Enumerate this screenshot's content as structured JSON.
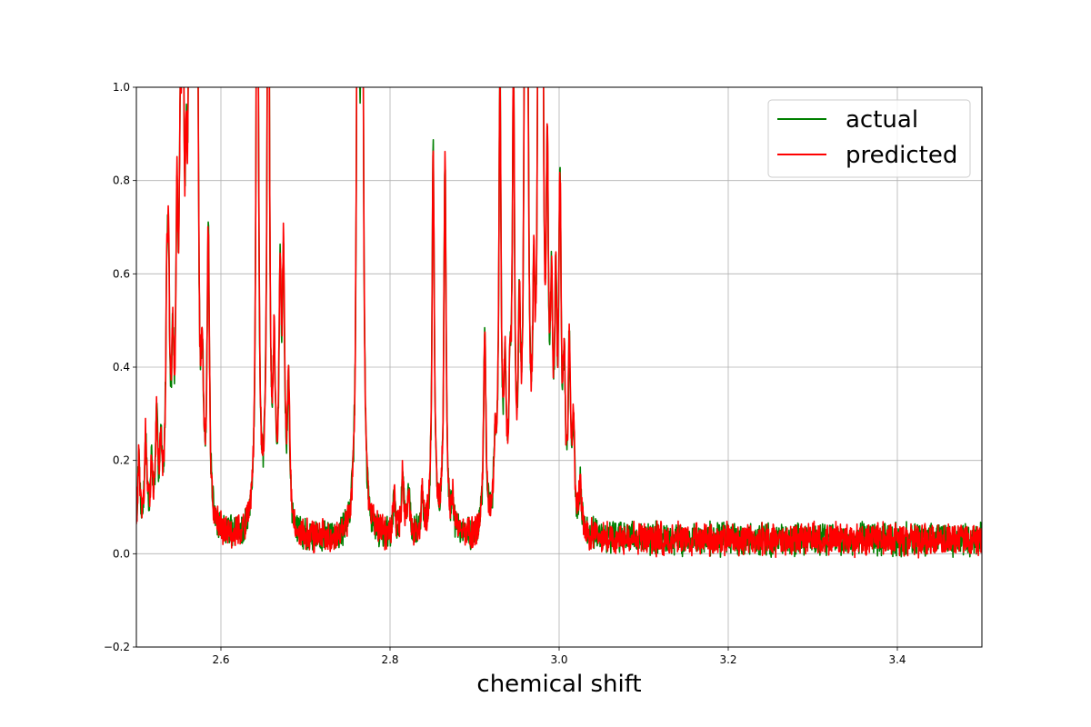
{
  "chart_data": {
    "type": "line",
    "title": "",
    "xlabel": "chemical shift",
    "ylabel": "",
    "xlim": [
      2.5,
      3.5
    ],
    "ylim": [
      -0.2,
      1.0
    ],
    "grid": true,
    "legend_position": "top-right",
    "xticks": [
      "2.6",
      "2.8",
      "3.0",
      "3.2",
      "3.4"
    ],
    "xtick_values": [
      2.6,
      2.8,
      3.0,
      3.2,
      3.4
    ],
    "yticks": [
      "−0.2",
      "0.0",
      "0.2",
      "0.4",
      "0.6",
      "0.8",
      "1.0"
    ],
    "ytick_values": [
      -0.2,
      0.0,
      0.2,
      0.4,
      0.6,
      0.8,
      1.0
    ],
    "noise": {
      "baseline": 0.03,
      "amplitude": 0.03
    },
    "peaks": [
      {
        "x": 2.503,
        "y": 0.16
      },
      {
        "x": 2.511,
        "y": 0.2
      },
      {
        "x": 2.518,
        "y": 0.14
      },
      {
        "x": 2.524,
        "y": 0.22
      },
      {
        "x": 2.529,
        "y": 0.16
      },
      {
        "x": 2.536,
        "y": 0.38
      },
      {
        "x": 2.538,
        "y": 0.46
      },
      {
        "x": 2.543,
        "y": 0.3
      },
      {
        "x": 2.548,
        "y": 0.56
      },
      {
        "x": 2.552,
        "y": 0.62
      },
      {
        "x": 2.555,
        "y": 0.95
      },
      {
        "x": 2.559,
        "y": 0.48
      },
      {
        "x": 2.563,
        "y": 1.2
      },
      {
        "x": 2.566,
        "y": 0.62
      },
      {
        "x": 2.568,
        "y": 1.2
      },
      {
        "x": 2.572,
        "y": 1.1
      },
      {
        "x": 2.578,
        "y": 0.28
      },
      {
        "x": 2.585,
        "y": 0.62
      },
      {
        "x": 2.643,
        "y": 1.6
      },
      {
        "x": 2.656,
        "y": 1.5
      },
      {
        "x": 2.663,
        "y": 0.33
      },
      {
        "x": 2.67,
        "y": 0.5
      },
      {
        "x": 2.674,
        "y": 0.54
      },
      {
        "x": 2.68,
        "y": 0.3
      },
      {
        "x": 2.762,
        "y": 1.7
      },
      {
        "x": 2.767,
        "y": 1.6
      },
      {
        "x": 2.805,
        "y": 0.08
      },
      {
        "x": 2.815,
        "y": 0.14
      },
      {
        "x": 2.822,
        "y": 0.1
      },
      {
        "x": 2.838,
        "y": 0.09
      },
      {
        "x": 2.851,
        "y": 0.82
      },
      {
        "x": 2.865,
        "y": 0.79
      },
      {
        "x": 2.874,
        "y": 0.07
      },
      {
        "x": 2.912,
        "y": 0.43
      },
      {
        "x": 2.924,
        "y": 0.16
      },
      {
        "x": 2.93,
        "y": 0.95
      },
      {
        "x": 2.936,
        "y": 0.3
      },
      {
        "x": 2.942,
        "y": 0.25
      },
      {
        "x": 2.946,
        "y": 0.91
      },
      {
        "x": 2.953,
        "y": 0.38
      },
      {
        "x": 2.96,
        "y": 1.5
      },
      {
        "x": 2.963,
        "y": 0.65
      },
      {
        "x": 2.97,
        "y": 0.4
      },
      {
        "x": 2.976,
        "y": 1.5
      },
      {
        "x": 2.98,
        "y": 1.4
      },
      {
        "x": 2.986,
        "y": 0.68
      },
      {
        "x": 2.991,
        "y": 0.42
      },
      {
        "x": 2.996,
        "y": 0.44
      },
      {
        "x": 3.001,
        "y": 0.69
      },
      {
        "x": 3.006,
        "y": 0.3
      },
      {
        "x": 3.012,
        "y": 0.36
      },
      {
        "x": 3.017,
        "y": 0.22
      },
      {
        "x": 3.025,
        "y": 0.1
      }
    ],
    "series": [
      {
        "name": "actual",
        "color": "#008000",
        "seed": 7
      },
      {
        "name": "predicted",
        "color": "#ff0000",
        "seed": 13
      }
    ]
  }
}
